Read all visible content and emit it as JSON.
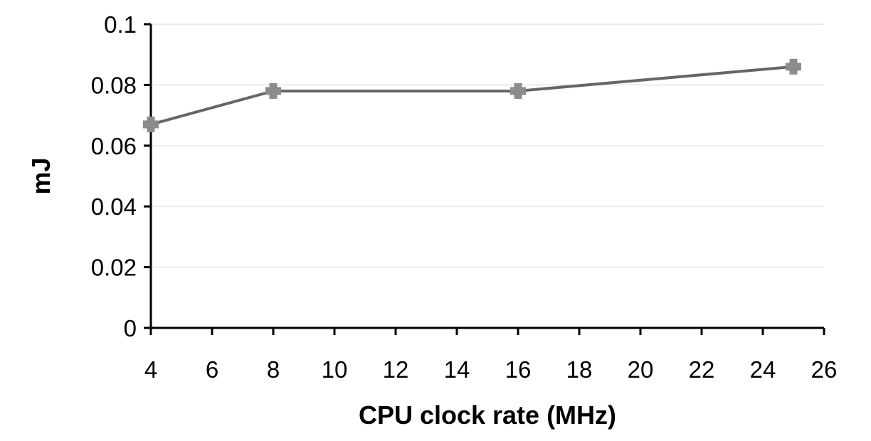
{
  "chart_data": {
    "type": "line",
    "title": "",
    "xlabel": "CPU clock rate (MHz)",
    "ylabel": "mJ",
    "xlim": [
      4,
      26
    ],
    "ylim": [
      0,
      0.1
    ],
    "x_ticks": [
      4,
      6,
      8,
      10,
      12,
      14,
      16,
      18,
      20,
      22,
      24,
      26
    ],
    "y_ticks": [
      0,
      0.02,
      0.04,
      0.06,
      0.08,
      0.1
    ],
    "x_tick_labels": [
      "4",
      "6",
      "8",
      "10",
      "12",
      "14",
      "16",
      "18",
      "20",
      "22",
      "24",
      "26"
    ],
    "y_tick_labels": [
      "0",
      "0.02",
      "0.04",
      "0.06",
      "0.08",
      "0.1"
    ],
    "grid": "horizontal",
    "legend": "none",
    "series": [
      {
        "color": "#666666",
        "marker_color": "#8c8c8c",
        "marker": "plus",
        "x": [
          4,
          8,
          16,
          25
        ],
        "y": [
          0.067,
          0.078,
          0.078,
          0.086
        ]
      }
    ]
  }
}
